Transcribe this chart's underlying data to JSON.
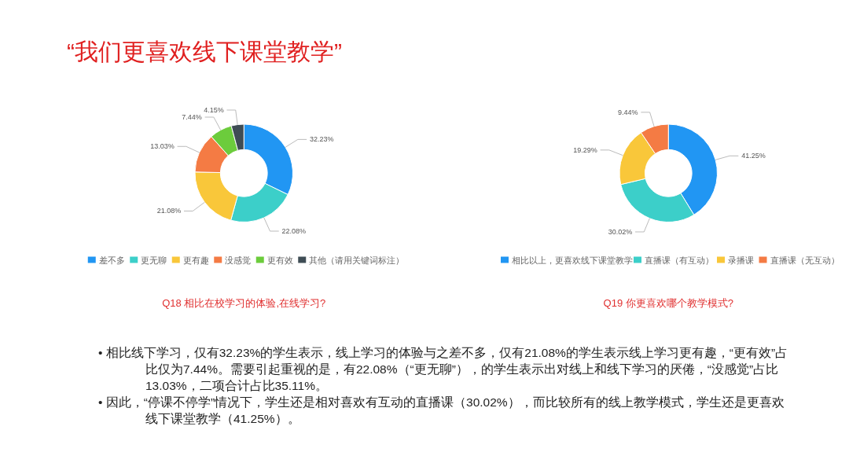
{
  "chart_data": [
    {
      "type": "donut",
      "title": "“我们更喜欢线下课堂教学”",
      "xlabel": "Q18 相比在校学习的体验,在线学习?",
      "legend": "bottom",
      "categories": [
        "差不多",
        "更无聊",
        "更有趣",
        "没感觉",
        "更有效",
        "其他（请用关键词标注）"
      ],
      "values": [
        32.23,
        22.08,
        21.08,
        13.03,
        7.44,
        4.15
      ],
      "value_labels": [
        "32.23%",
        "22.08%",
        "21.08%",
        "13.03%",
        "7.44%",
        "4.15%"
      ],
      "colors": [
        "#2196f3",
        "#3ccfc9",
        "#f9c73a",
        "#f47b44",
        "#6ccc3c",
        "#3f4d55"
      ],
      "annotations": [
        "• 相比线下学习，仅有32.23%的学生表示，线上学习的体验与之差不多，仅有21.08%的学生表示线上学习更有趣，“更有效”占比仅为7.44%。需要引起重视的是，有22.08%（“更无聊”），的学生表示出对线上和线下学习的厌倦，“没感觉”占比13.03%，二项合计占比35.11%。",
        "• 因此，“停课不停学”情况下，学生还是相对喜欢有互动的直播课（30.02%），而比较所有的线上教学模式，学生还是更喜欢线下课堂教学（41.25%）。"
      ]
    },
    {
      "type": "donut",
      "xlabel": "Q19 你更喜欢哪个教学模式?",
      "legend": "bottom",
      "categories": [
        "相比以上，更喜欢线下课堂教学",
        "直播课（有互动）",
        "录播课",
        "直播课（无互动）"
      ],
      "values": [
        41.25,
        30.02,
        19.29,
        9.44
      ],
      "value_labels": [
        "41.25%",
        "30.02%",
        "19.29%",
        "9.44%"
      ],
      "colors": [
        "#2196f3",
        "#3ccfc9",
        "#f9c73a",
        "#f47b44"
      ]
    }
  ]
}
